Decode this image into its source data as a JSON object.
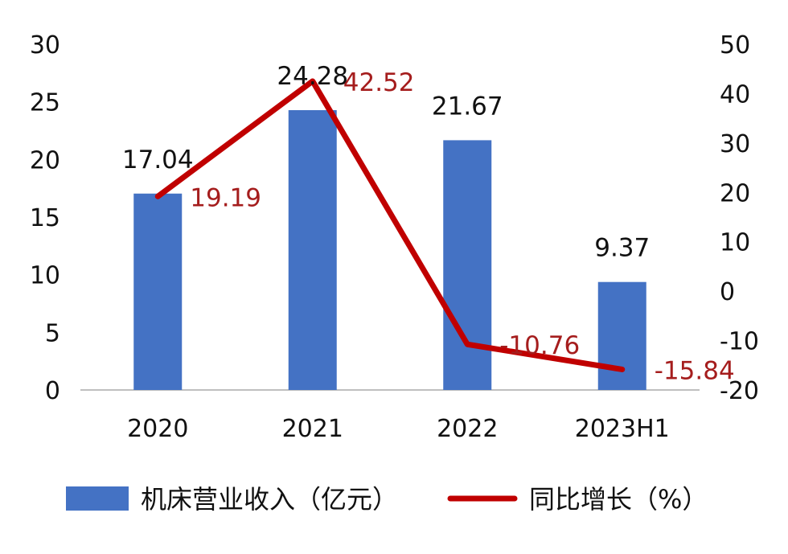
{
  "colors": {
    "bar": "#4472C4",
    "line": "#C00000",
    "line_label": "#A51D1D",
    "axis": "#BFBFBF",
    "text": "#111111"
  },
  "chart_data": {
    "type": "bar",
    "categories": [
      "2020",
      "2021",
      "2022",
      "2023H1"
    ],
    "series": [
      {
        "name": "机床营业收入（亿元）",
        "type": "bar",
        "axis": "left",
        "values": [
          17.04,
          24.28,
          21.67,
          9.37
        ],
        "labels": [
          "17.04",
          "24.28",
          "21.67",
          "9.37"
        ]
      },
      {
        "name": "同比增长（%）",
        "type": "line",
        "axis": "right",
        "values": [
          19.19,
          42.52,
          -10.76,
          -15.84
        ],
        "labels": [
          "19.19",
          "42.52",
          "-10.76",
          "-15.84"
        ]
      }
    ],
    "y_left": {
      "min": 0,
      "max": 30,
      "ticks": [
        "30",
        "25",
        "20",
        "15",
        "10",
        "5",
        "0"
      ]
    },
    "y_right": {
      "min": -20,
      "max": 50,
      "ticks": [
        "50",
        "40",
        "30",
        "20",
        "10",
        "0",
        "-10",
        "-20"
      ]
    },
    "grid": false,
    "legend_position": "bottom"
  }
}
